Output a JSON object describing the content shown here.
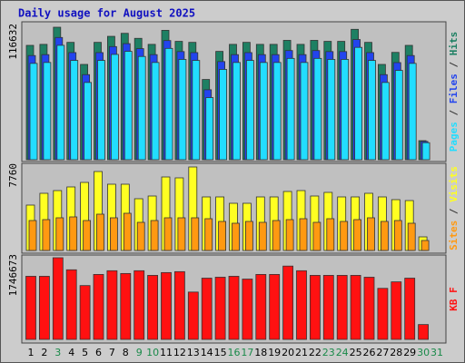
{
  "title": "Daily usage for August 2025",
  "legend_separator": " / ",
  "chart_data": [
    {
      "type": "bar",
      "ylim": [
        0,
        116632
      ],
      "yticks": [
        116632
      ],
      "series": [
        {
          "name": "Hits",
          "color": "#1e8063",
          "values": [
            100662,
            101545,
            116632,
            103311,
            83885,
            103311,
            108609,
            111258,
            106843,
            101545,
            113907,
            104194,
            103311,
            70640,
            95364,
            101545,
            103311,
            101545,
            101545,
            105077,
            101545,
            105077,
            104194,
            104194,
            114790,
            103311,
            83885,
            94481,
            100662,
            16777,
            0
          ]
        },
        {
          "name": "Files",
          "color": "#2244ee",
          "values": [
            91700,
            92500,
            107600,
            94300,
            74900,
            94300,
            99600,
            102200,
            97800,
            92500,
            104900,
            95200,
            94300,
            61600,
            86400,
            92500,
            94300,
            92500,
            92500,
            96100,
            92500,
            96100,
            95200,
            95200,
            105800,
            94300,
            74900,
            85500,
            91700,
            16100,
            0
          ]
        },
        {
          "name": "Pages",
          "color": "#22ddff",
          "values": [
            84800,
            85600,
            100700,
            87400,
            68000,
            87400,
            92700,
            95400,
            90900,
            85600,
            98000,
            88300,
            87400,
            54700,
            79500,
            85600,
            87400,
            85600,
            85600,
            89200,
            85600,
            89200,
            88300,
            88300,
            98900,
            87400,
            68000,
            78600,
            84800,
            15000,
            0
          ]
        }
      ]
    },
    {
      "type": "bar",
      "ylim": [
        0,
        7760
      ],
      "yticks": [
        7760
      ],
      "series": [
        {
          "name": "Visits",
          "color": "#ffff22",
          "values": [
            4218,
            5314,
            5567,
            5905,
            6326,
            7338,
            6158,
            6158,
            4808,
            5061,
            6832,
            6748,
            7760,
            4977,
            4977,
            4386,
            4386,
            4977,
            4977,
            5483,
            5567,
            5061,
            5398,
            4977,
            4977,
            5314,
            4977,
            4724,
            4639,
            1265,
            0
          ]
        },
        {
          "name": "Sites",
          "color": "#ff9911",
          "values": [
            2784,
            2868,
            3037,
            3121,
            2784,
            3374,
            3037,
            3458,
            2615,
            2784,
            3037,
            3037,
            3037,
            2952,
            2699,
            2531,
            2699,
            2615,
            2784,
            2868,
            2952,
            2615,
            2952,
            2699,
            2868,
            3037,
            2699,
            2784,
            2531,
            928,
            0
          ]
        }
      ]
    },
    {
      "type": "bar",
      "ylim": [
        0,
        1746673
      ],
      "yticks": [
        1746673
      ],
      "categories": [
        "1",
        "2",
        "3",
        "4",
        "5",
        "6",
        "7",
        "8",
        "9",
        "10",
        "11",
        "12",
        "13",
        "14",
        "15",
        "16",
        "17",
        "18",
        "19",
        "20",
        "21",
        "22",
        "23",
        "24",
        "25",
        "26",
        "27",
        "28",
        "29",
        "30",
        "31"
      ],
      "category_colors": [
        "#000",
        "#000",
        "#1a8a4a",
        "#000",
        "#000",
        "#000",
        "#000",
        "#000",
        "#1a8a4a",
        "#1a8a4a",
        "#000",
        "#000",
        "#000",
        "#000",
        "#000",
        "#1a8a4a",
        "#1a8a4a",
        "#000",
        "#000",
        "#000",
        "#000",
        "#000",
        "#1a8a4a",
        "#1a8a4a",
        "#000",
        "#000",
        "#000",
        "#000",
        "#000",
        "#1a8a4a",
        "#1a8a4a"
      ],
      "series": [
        {
          "name": "KB F",
          "color": "#ff1111",
          "values": [
            1349700,
            1349700,
            1746673,
            1488700,
            1151200,
            1389400,
            1468800,
            1409300,
            1468800,
            1369600,
            1429100,
            1449000,
            1012300,
            1310000,
            1329900,
            1349700,
            1290200,
            1389400,
            1389400,
            1568100,
            1468800,
            1369600,
            1369600,
            1369600,
            1369600,
            1329900,
            1091700,
            1230600,
            1310000,
            317600,
            0
          ]
        }
      ]
    }
  ]
}
